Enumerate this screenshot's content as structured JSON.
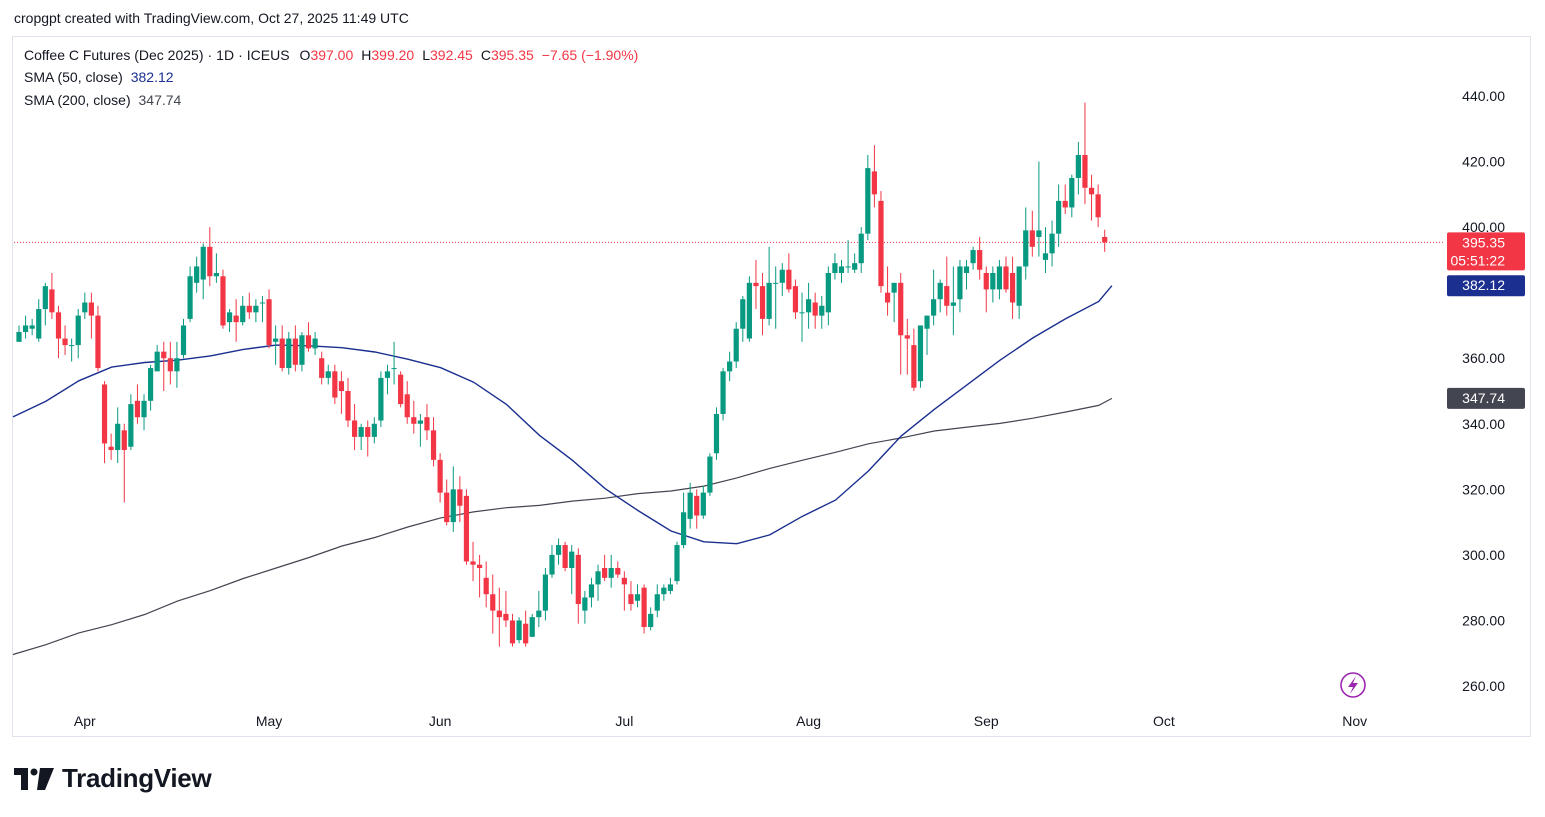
{
  "header": {
    "attribution": "cropgpt created with TradingView.com, Oct 27, 2025 11:49 UTC"
  },
  "legend": {
    "symbol": "Coffee C Futures (Dec 2025)",
    "interval": "1D",
    "exchange": "ICEUS",
    "open_label": "O",
    "open": "397.00",
    "high_label": "H",
    "high": "399.20",
    "low_label": "L",
    "low": "392.45",
    "close_label": "C",
    "close": "395.35",
    "change": "−7.65 (−1.90%)",
    "sma50_label": "SMA (50, close)",
    "sma50_value": "382.12",
    "sma200_label": "SMA (200, close)",
    "sma200_value": "347.74"
  },
  "colors": {
    "up": "#089981",
    "down": "#f23645",
    "sma50": "#1a2f8f",
    "sma200": "#434651",
    "price_line": "#f23645",
    "text": "#131722",
    "axis_text": "#131722"
  },
  "price_tags": {
    "last_price": "395.35",
    "countdown": "05:51:22",
    "sma50": "382.12",
    "sma200": "347.74"
  },
  "footer": {
    "brand": "TradingView"
  },
  "chart_data": {
    "type": "candlestick",
    "title": "Coffee C Futures (Dec 2025) · 1D · ICEUS",
    "ylim": [
      252,
      450
    ],
    "y_ticks": [
      "440.00",
      "420.00",
      "400.00",
      "360.00",
      "340.00",
      "320.00",
      "300.00",
      "280.00",
      "260.00"
    ],
    "x_ticks": [
      "Apr",
      "May",
      "Jun",
      "Jul",
      "Aug",
      "Sep",
      "Oct",
      "Nov"
    ],
    "x_tick_bar_index": [
      10,
      38,
      64,
      92,
      120,
      147,
      174,
      203
    ],
    "last_price": 395.35,
    "candles_ohlc": [
      [
        365.0,
        370.0,
        365.0,
        368.0
      ],
      [
        368.0,
        373.0,
        366.0,
        370.0
      ],
      [
        369.0,
        372.0,
        367.0,
        370.0
      ],
      [
        366.0,
        378.0,
        365.0,
        375.0
      ],
      [
        375.0,
        383.0,
        370.0,
        382.0
      ],
      [
        381.0,
        386.0,
        372.0,
        374.0
      ],
      [
        374.0,
        376.0,
        360.0,
        366.0
      ],
      [
        366.0,
        370.0,
        361.0,
        364.0
      ],
      [
        364.0,
        366.0,
        359.0,
        364.0
      ],
      [
        364.0,
        375.0,
        360.0,
        373.0
      ],
      [
        374.0,
        380.0,
        372.0,
        377.0
      ],
      [
        377.0,
        380.0,
        366.0,
        373.0
      ],
      [
        373.0,
        376.0,
        356.0,
        357.0
      ],
      [
        352.0,
        353.0,
        328.0,
        334.0
      ],
      [
        333.0,
        337.0,
        329.0,
        332.0
      ],
      [
        332.0,
        345.0,
        328.0,
        340.0
      ],
      [
        338.0,
        340.0,
        316.0,
        332.0
      ],
      [
        333.0,
        349.0,
        332.0,
        346.0
      ],
      [
        347.0,
        352.0,
        340.0,
        342.0
      ],
      [
        342.0,
        349.0,
        338.0,
        347.0
      ],
      [
        347.0,
        358.0,
        344.0,
        357.0
      ],
      [
        356.0,
        364.0,
        356.0,
        362.0
      ],
      [
        362.0,
        365.0,
        350.0,
        360.0
      ],
      [
        360.0,
        365.0,
        352.0,
        356.0
      ],
      [
        356.0,
        365.0,
        351.0,
        360.0
      ],
      [
        361.0,
        372.0,
        360.0,
        370.0
      ],
      [
        372.0,
        388.0,
        371.0,
        385.0
      ],
      [
        383.0,
        391.0,
        380.0,
        388.0
      ],
      [
        384.0,
        395.0,
        378.0,
        394.0
      ],
      [
        394.0,
        400.0,
        382.0,
        385.0
      ],
      [
        385.0,
        392.0,
        383.0,
        386.0
      ],
      [
        385.0,
        387.0,
        369.0,
        370.0
      ],
      [
        371.0,
        375.0,
        368.0,
        374.0
      ],
      [
        373.0,
        378.0,
        365.0,
        371.0
      ],
      [
        371.0,
        379.0,
        370.0,
        376.0
      ],
      [
        376.0,
        380.0,
        372.0,
        374.0
      ],
      [
        374.0,
        378.0,
        371.0,
        376.0
      ],
      [
        377.0,
        379.0,
        371.0,
        377.0
      ],
      [
        378.0,
        381.0,
        363.0,
        364.0
      ],
      [
        365.0,
        370.0,
        358.0,
        366.0
      ],
      [
        366.0,
        370.0,
        356.0,
        357.0
      ],
      [
        357.0,
        368.0,
        355.0,
        366.0
      ],
      [
        366.0,
        370.0,
        356.0,
        358.0
      ],
      [
        358.0,
        368.0,
        356.0,
        367.0
      ],
      [
        367.0,
        371.0,
        362.0,
        363.0
      ],
      [
        363.0,
        368.0,
        361.0,
        366.0
      ],
      [
        360.0,
        362.0,
        352.0,
        354.0
      ],
      [
        354.0,
        358.0,
        352.0,
        356.0
      ],
      [
        356.0,
        358.0,
        346.0,
        348.0
      ],
      [
        353.0,
        356.0,
        343.0,
        350.0
      ],
      [
        350.0,
        354.0,
        339.0,
        341.0
      ],
      [
        341.0,
        346.0,
        332.0,
        336.0
      ],
      [
        336.0,
        340.0,
        332.0,
        339.0
      ],
      [
        339.0,
        341.0,
        330.0,
        336.0
      ],
      [
        336.0,
        342.0,
        334.0,
        340.0
      ],
      [
        341.0,
        356.0,
        339.0,
        354.0
      ],
      [
        354.0,
        358.0,
        349.0,
        356.0
      ],
      [
        357.0,
        365.0,
        352.0,
        357.0
      ],
      [
        355.0,
        356.0,
        345.0,
        346.0
      ],
      [
        349.0,
        353.0,
        340.0,
        342.0
      ],
      [
        342.0,
        347.0,
        337.0,
        340.0
      ],
      [
        340.0,
        343.0,
        333.0,
        341.0
      ],
      [
        342.0,
        346.0,
        335.0,
        338.0
      ],
      [
        338.0,
        342.0,
        327.0,
        329.0
      ],
      [
        329.0,
        331.0,
        316.0,
        319.0
      ],
      [
        319.0,
        323.0,
        309.0,
        310.0
      ],
      [
        310.0,
        327.0,
        307.0,
        320.0
      ],
      [
        320.0,
        324.0,
        310.0,
        315.0
      ],
      [
        318.0,
        320.0,
        297.0,
        298.0
      ],
      [
        298.0,
        304.0,
        292.0,
        297.0
      ],
      [
        297.0,
        300.0,
        287.0,
        296.0
      ],
      [
        293.0,
        298.0,
        284.0,
        288.0
      ],
      [
        288.0,
        294.0,
        276.0,
        283.0
      ],
      [
        283.0,
        290.0,
        272.0,
        281.0
      ],
      [
        282.0,
        289.0,
        278.0,
        280.0
      ],
      [
        280.0,
        282.0,
        272.0,
        273.0
      ],
      [
        274.0,
        281.0,
        273.0,
        280.0
      ],
      [
        279.0,
        283.0,
        272.0,
        273.0
      ],
      [
        275.0,
        282.0,
        275.0,
        281.0
      ],
      [
        281.0,
        289.0,
        278.0,
        283.0
      ],
      [
        283.0,
        296.0,
        280.0,
        294.0
      ],
      [
        294.0,
        303.0,
        293.0,
        300.0
      ],
      [
        300.0,
        305.0,
        297.0,
        303.0
      ],
      [
        303.0,
        304.0,
        295.0,
        296.0
      ],
      [
        296.0,
        303.0,
        288.0,
        301.0
      ],
      [
        300.0,
        302.0,
        279.0,
        285.0
      ],
      [
        283.0,
        289.0,
        279.0,
        287.0
      ],
      [
        287.0,
        293.0,
        284.0,
        291.0
      ],
      [
        291.0,
        297.0,
        286.0,
        295.0
      ],
      [
        296.0,
        300.0,
        292.0,
        293.0
      ],
      [
        293.0,
        300.0,
        290.0,
        296.0
      ],
      [
        296.0,
        298.0,
        293.0,
        294.0
      ],
      [
        293.0,
        295.0,
        283.0,
        291.0
      ],
      [
        288.0,
        292.0,
        283.0,
        285.0
      ],
      [
        286.0,
        291.0,
        284.0,
        288.0
      ],
      [
        290.0,
        291.0,
        276.0,
        278.0
      ],
      [
        278.0,
        284.0,
        277.0,
        282.0
      ],
      [
        283.0,
        291.0,
        281.0,
        288.0
      ],
      [
        288.0,
        291.0,
        286.0,
        290.0
      ],
      [
        289.0,
        293.0,
        288.0,
        291.0
      ],
      [
        292.0,
        304.0,
        291.0,
        303.0
      ],
      [
        303.0,
        319.0,
        302.0,
        313.0
      ],
      [
        311.0,
        322.0,
        308.0,
        319.0
      ],
      [
        318.0,
        320.0,
        308.0,
        312.0
      ],
      [
        312.0,
        321.0,
        311.0,
        319.0
      ],
      [
        319.0,
        331.0,
        318.0,
        330.0
      ],
      [
        331.0,
        345.0,
        329.0,
        343.0
      ],
      [
        343.0,
        357.0,
        341.0,
        356.0
      ],
      [
        356.0,
        362.0,
        353.0,
        359.0
      ],
      [
        359.0,
        371.0,
        357.0,
        369.0
      ],
      [
        369.0,
        379.0,
        365.0,
        378.0
      ],
      [
        366.0,
        385.0,
        365.0,
        383.0
      ],
      [
        383.0,
        390.0,
        375.0,
        382.0
      ],
      [
        382.0,
        386.0,
        367.0,
        372.0
      ],
      [
        372.0,
        394.0,
        370.0,
        383.0
      ],
      [
        383.0,
        388.0,
        369.0,
        383.0
      ],
      [
        383.0,
        389.0,
        379.0,
        387.0
      ],
      [
        387.0,
        392.0,
        380.0,
        381.0
      ],
      [
        382.0,
        384.0,
        372.0,
        374.0
      ],
      [
        374.0,
        380.0,
        365.0,
        374.0
      ],
      [
        374.0,
        383.0,
        369.0,
        378.0
      ],
      [
        377.0,
        380.0,
        369.0,
        373.0
      ],
      [
        373.0,
        379.0,
        369.0,
        376.0
      ],
      [
        374.0,
        388.0,
        370.0,
        386.0
      ],
      [
        386.0,
        392.0,
        384.0,
        389.0
      ],
      [
        386.0,
        390.0,
        383.0,
        388.0
      ],
      [
        388.0,
        396.0,
        386.0,
        388.0
      ],
      [
        387.0,
        392.0,
        386.0,
        389.0
      ],
      [
        389.0,
        400.0,
        386.0,
        398.0
      ],
      [
        398.0,
        422.0,
        396.0,
        418.0
      ],
      [
        417.0,
        425.0,
        406.0,
        410.0
      ],
      [
        408.0,
        411.0,
        380.0,
        382.0
      ],
      [
        380.0,
        388.0,
        373.0,
        377.0
      ],
      [
        380.0,
        383.0,
        371.0,
        383.0
      ],
      [
        383.0,
        386.0,
        355.0,
        367.0
      ],
      [
        367.0,
        372.0,
        355.0,
        366.0
      ],
      [
        364.0,
        369.0,
        350.0,
        351.0
      ],
      [
        353.0,
        370.0,
        351.0,
        370.0
      ],
      [
        369.0,
        373.0,
        361.0,
        373.0
      ],
      [
        373.0,
        387.0,
        370.0,
        378.0
      ],
      [
        378.0,
        384.0,
        374.0,
        383.0
      ],
      [
        382.0,
        391.0,
        373.0,
        376.0
      ],
      [
        376.0,
        388.0,
        367.0,
        377.0
      ],
      [
        378.0,
        390.0,
        374.0,
        388.0
      ],
      [
        386.0,
        390.0,
        381.0,
        388.0
      ],
      [
        389.0,
        394.0,
        387.0,
        393.0
      ],
      [
        393.0,
        397.0,
        384.0,
        387.0
      ],
      [
        386.0,
        388.0,
        374.0,
        381.0
      ],
      [
        381.0,
        388.0,
        377.0,
        386.0
      ],
      [
        381.0,
        390.0,
        378.0,
        388.0
      ],
      [
        388.0,
        391.0,
        380.0,
        381.0
      ],
      [
        386.0,
        391.0,
        372.0,
        377.0
      ],
      [
        376.0,
        382.0,
        372.0,
        388.0
      ],
      [
        388.0,
        406.0,
        384.0,
        399.0
      ],
      [
        399.0,
        405.0,
        391.0,
        394.0
      ],
      [
        397.0,
        420.0,
        391.0,
        399.0
      ],
      [
        390.0,
        400.0,
        386.0,
        392.0
      ],
      [
        392.0,
        402.0,
        388.0,
        398.0
      ],
      [
        398.0,
        413.0,
        394.0,
        408.0
      ],
      [
        408.0,
        413.0,
        404.0,
        406.0
      ],
      [
        406.0,
        416.0,
        403.0,
        415.0
      ],
      [
        415.0,
        426.0,
        410.0,
        422.0
      ],
      [
        422.0,
        438.0,
        407.0,
        412.0
      ],
      [
        412.0,
        416.0,
        402.0,
        410.0
      ],
      [
        410.0,
        413.0,
        400.0,
        403.0
      ],
      [
        397.0,
        399.2,
        392.45,
        395.35
      ]
    ],
    "series": [
      {
        "name": "SMA (50, close)",
        "color": "#1a2f8f",
        "last": 382.12,
        "points": [
          [
            0,
            342.1
          ],
          [
            5,
            346.9
          ],
          [
            10,
            353.1
          ],
          [
            15,
            357.3
          ],
          [
            20,
            358.7
          ],
          [
            25,
            359.4
          ],
          [
            30,
            360.7
          ],
          [
            35,
            362.7
          ],
          [
            40,
            364.0
          ],
          [
            45,
            363.8
          ],
          [
            50,
            363.2
          ],
          [
            55,
            361.9
          ],
          [
            60,
            359.7
          ],
          [
            65,
            357.1
          ],
          [
            70,
            352.7
          ],
          [
            75,
            345.9
          ],
          [
            80,
            336.5
          ],
          [
            85,
            328.9
          ],
          [
            90,
            320.2
          ],
          [
            95,
            313.5
          ],
          [
            100,
            307.3
          ],
          [
            105,
            304.0
          ],
          [
            110,
            303.4
          ],
          [
            115,
            306.1
          ],
          [
            120,
            311.8
          ],
          [
            125,
            316.7
          ],
          [
            130,
            325.6
          ],
          [
            135,
            336.3
          ],
          [
            140,
            344.4
          ],
          [
            145,
            351.9
          ],
          [
            150,
            359.4
          ],
          [
            155,
            366.2
          ],
          [
            160,
            372.1
          ],
          [
            165,
            377.3
          ],
          [
            167,
            382.12
          ]
        ]
      },
      {
        "name": "SMA (200, close)",
        "color": "#434651",
        "last": 347.74,
        "points": [
          [
            0,
            269.6
          ],
          [
            5,
            272.6
          ],
          [
            10,
            276.2
          ],
          [
            15,
            278.7
          ],
          [
            20,
            281.8
          ],
          [
            25,
            285.9
          ],
          [
            30,
            289.1
          ],
          [
            35,
            292.8
          ],
          [
            40,
            296.0
          ],
          [
            45,
            299.2
          ],
          [
            50,
            302.7
          ],
          [
            55,
            305.3
          ],
          [
            60,
            308.5
          ],
          [
            65,
            311.3
          ],
          [
            70,
            313.1
          ],
          [
            75,
            314.4
          ],
          [
            80,
            315.1
          ],
          [
            85,
            316.4
          ],
          [
            90,
            317.3
          ],
          [
            95,
            318.7
          ],
          [
            100,
            319.5
          ],
          [
            105,
            321.0
          ],
          [
            110,
            323.5
          ],
          [
            115,
            326.4
          ],
          [
            120,
            328.9
          ],
          [
            125,
            331.3
          ],
          [
            130,
            333.9
          ],
          [
            135,
            335.7
          ],
          [
            140,
            337.8
          ],
          [
            145,
            339.0
          ],
          [
            150,
            340.1
          ],
          [
            155,
            341.7
          ],
          [
            160,
            343.6
          ],
          [
            165,
            345.6
          ],
          [
            167,
            347.74
          ]
        ]
      }
    ]
  }
}
